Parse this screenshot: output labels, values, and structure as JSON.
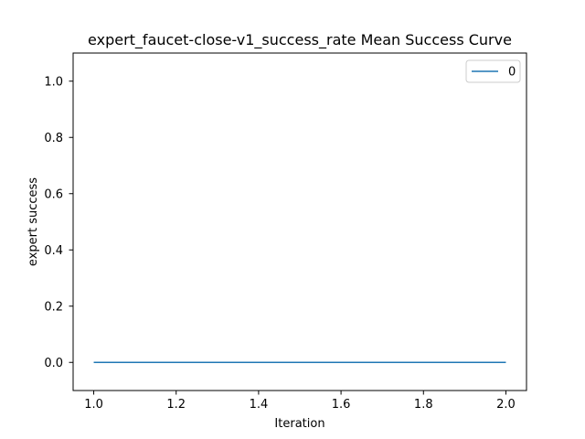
{
  "chart_data": {
    "type": "line",
    "title": "expert_faucet-close-v1_success_rate Mean Success Curve",
    "xlabel": "Iteration",
    "ylabel": "expert success",
    "x": [
      1.0,
      2.0
    ],
    "series": [
      {
        "name": "0",
        "values": [
          0.0,
          0.0
        ],
        "color": "#1f77b4"
      }
    ],
    "xlim": [
      0.95,
      2.05
    ],
    "ylim": [
      -0.1,
      1.1
    ],
    "xticks": [
      "1.0",
      "1.2",
      "1.4",
      "1.6",
      "1.8",
      "2.0"
    ],
    "yticks": [
      "0.0",
      "0.2",
      "0.4",
      "0.6",
      "0.8",
      "1.0"
    ],
    "grid": false,
    "legend_position": "upper-right"
  }
}
